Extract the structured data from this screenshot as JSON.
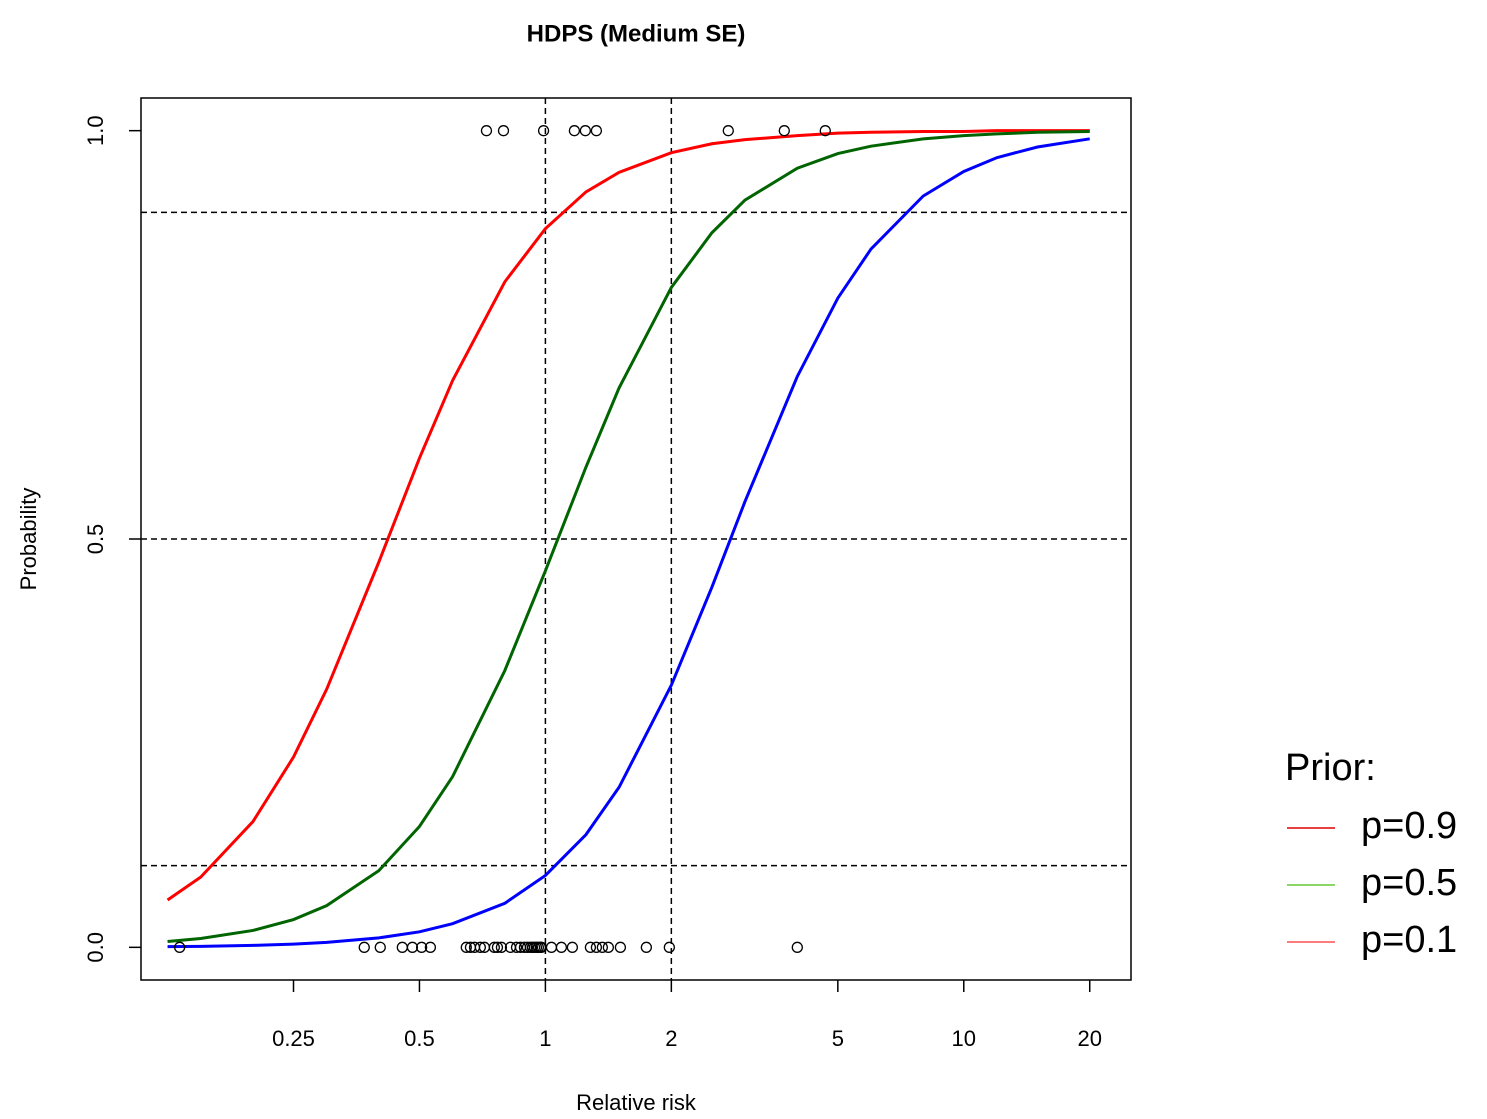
{
  "chart_data": {
    "type": "line",
    "title": "HDPS (Medium SE)",
    "xlabel": "Relative risk",
    "ylabel": "Probability",
    "xscale": "log",
    "xlim": [
      0.108,
      25.1
    ],
    "ylim": [
      -0.04,
      1.04
    ],
    "xticks": [
      0.25,
      0.5,
      1,
      2,
      5,
      10,
      20
    ],
    "yticks": [
      {
        "value": 0,
        "label": "0.0"
      },
      {
        "value": 0.5,
        "label": "0.5"
      },
      {
        "value": 1,
        "label": "1.0"
      }
    ],
    "grid": false,
    "hlines": [
      0.1,
      0.5,
      0.9
    ],
    "vlines": [
      1,
      2
    ],
    "x": [
      0.125,
      0.15,
      0.2,
      0.25,
      0.3,
      0.4,
      0.5,
      0.6,
      0.8,
      1,
      1.25,
      1.5,
      2,
      2.5,
      3,
      4,
      5,
      6,
      8,
      10,
      12,
      15,
      20
    ],
    "series": [
      {
        "name": "p=0.9",
        "color": "#ff0000",
        "legend_color": "#e00000",
        "values": [
          0.058,
          0.086,
          0.154,
          0.233,
          0.316,
          0.472,
          0.599,
          0.694,
          0.815,
          0.88,
          0.925,
          0.949,
          0.973,
          0.984,
          0.989,
          0.994,
          0.997,
          0.998,
          0.999,
          0.999,
          1,
          1,
          1
        ]
      },
      {
        "name": "p=0.5",
        "color": "#006400",
        "legend_color": "#66cc33",
        "values": [
          0.0071,
          0.0108,
          0.0207,
          0.034,
          0.051,
          0.094,
          0.148,
          0.209,
          0.339,
          0.461,
          0.588,
          0.685,
          0.808,
          0.875,
          0.915,
          0.954,
          0.972,
          0.981,
          0.99,
          0.994,
          0.996,
          0.998,
          0.999
        ]
      },
      {
        "name": "p=0.1",
        "color": "#0000ff",
        "legend_color": "#ff5050",
        "values": [
          0.0008,
          0.0012,
          0.0024,
          0.004,
          0.006,
          0.0116,
          0.019,
          0.029,
          0.054,
          0.088,
          0.138,
          0.196,
          0.321,
          0.441,
          0.546,
          0.699,
          0.795,
          0.855,
          0.92,
          0.95,
          0.967,
          0.98,
          0.99
        ]
      }
    ],
    "points": {
      "color": "#000000",
      "x": [
        0.723,
        0.794,
        0.99,
        1.173,
        1.246,
        1.324,
        2.736,
        3.724,
        4.666,
        0.1336,
        0.369,
        0.403,
        0.455,
        0.481,
        0.506,
        0.531,
        0.647,
        0.662,
        0.677,
        0.699,
        0.715,
        0.755,
        0.768,
        0.785,
        0.825,
        0.853,
        0.872,
        0.891,
        0.906,
        0.921,
        0.931,
        0.942,
        0.952,
        0.962,
        0.973,
        0.978,
        1.034,
        1.092,
        1.16,
        1.281,
        1.324,
        1.368,
        1.414,
        1.511,
        1.743,
        1.978,
        4.0
      ],
      "y": [
        1,
        1,
        1,
        1,
        1,
        1,
        1,
        1,
        1,
        0,
        0,
        0,
        0,
        0,
        0,
        0,
        0,
        0,
        0,
        0,
        0,
        0,
        0,
        0,
        0,
        0,
        0,
        0,
        0,
        0,
        0,
        0,
        0,
        0,
        0,
        0,
        0,
        0,
        0,
        0,
        0,
        0,
        0,
        0,
        0,
        0,
        0
      ]
    },
    "legend_title": "Prior:",
    "legend_position": "right"
  }
}
